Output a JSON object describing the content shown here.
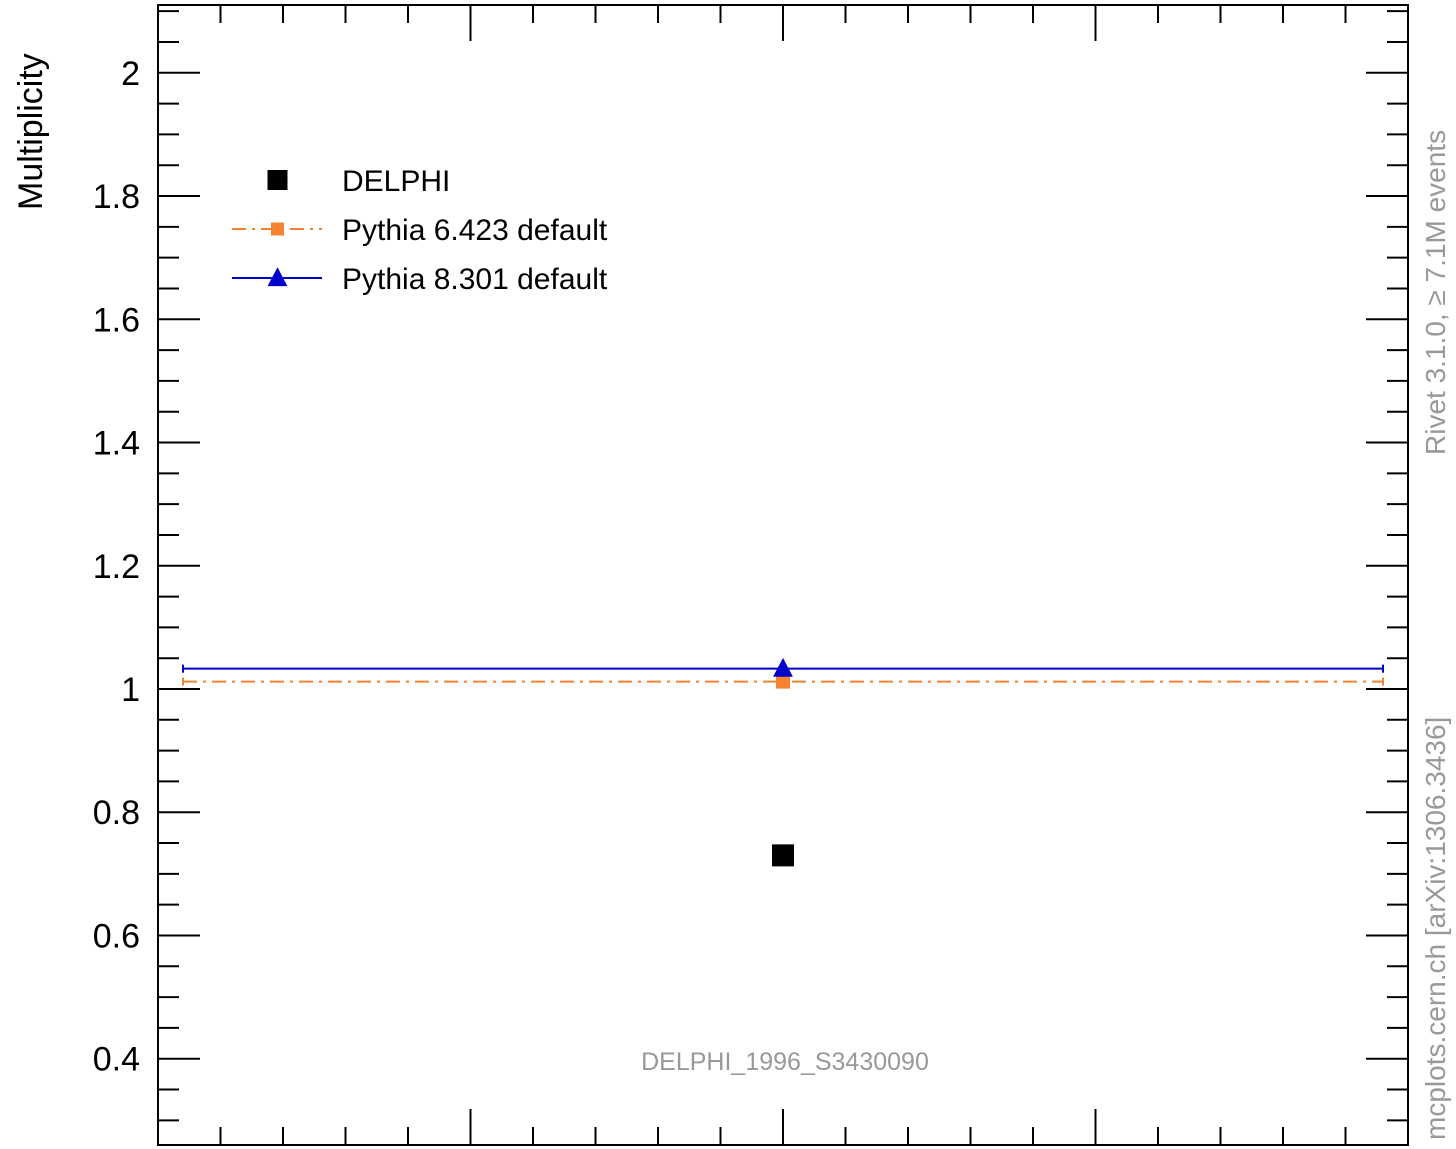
{
  "chart_data": {
    "type": "scatter",
    "title": "",
    "xlabel": "",
    "ylabel": "Multiplicity",
    "ylim": [
      0.26,
      2.11
    ],
    "xlim": [
      0,
      1
    ],
    "yticks": [
      {
        "v": 0.4,
        "label": "0.4"
      },
      {
        "v": 0.6,
        "label": "0.6"
      },
      {
        "v": 0.8,
        "label": "0.8"
      },
      {
        "v": 1.0,
        "label": "1"
      },
      {
        "v": 1.2,
        "label": "1.2"
      },
      {
        "v": 1.4,
        "label": "1.4"
      },
      {
        "v": 1.6,
        "label": "1.6"
      },
      {
        "v": 1.8,
        "label": "1.8"
      },
      {
        "v": 2.0,
        "label": "2"
      }
    ],
    "series": [
      {
        "name": "DELPHI",
        "x": [
          0.5
        ],
        "values": [
          0.73
        ],
        "color": "#000000",
        "marker": "square",
        "line": "none"
      },
      {
        "name": "Pythia 6.423 default",
        "x": [
          0.5
        ],
        "values": [
          1.012
        ],
        "xerr": [
          [
            0.02,
            0.98
          ]
        ],
        "color": "#f58231",
        "marker": "square",
        "line": "dashdot"
      },
      {
        "name": "Pythia 8.301 default",
        "x": [
          0.5
        ],
        "values": [
          1.033
        ],
        "xerr": [
          [
            0.02,
            0.98
          ]
        ],
        "color": "#0000cc",
        "marker": "triangle",
        "line": "solid"
      }
    ],
    "legend_position": "top-left",
    "annotations": {
      "analysis_id": "DELPHI_1996_S3430090",
      "side_top": "Rivet 3.1.0, ≥ 7.1M events",
      "side_bottom": "mcplots.cern.ch [arXiv:1306.3436]"
    }
  }
}
